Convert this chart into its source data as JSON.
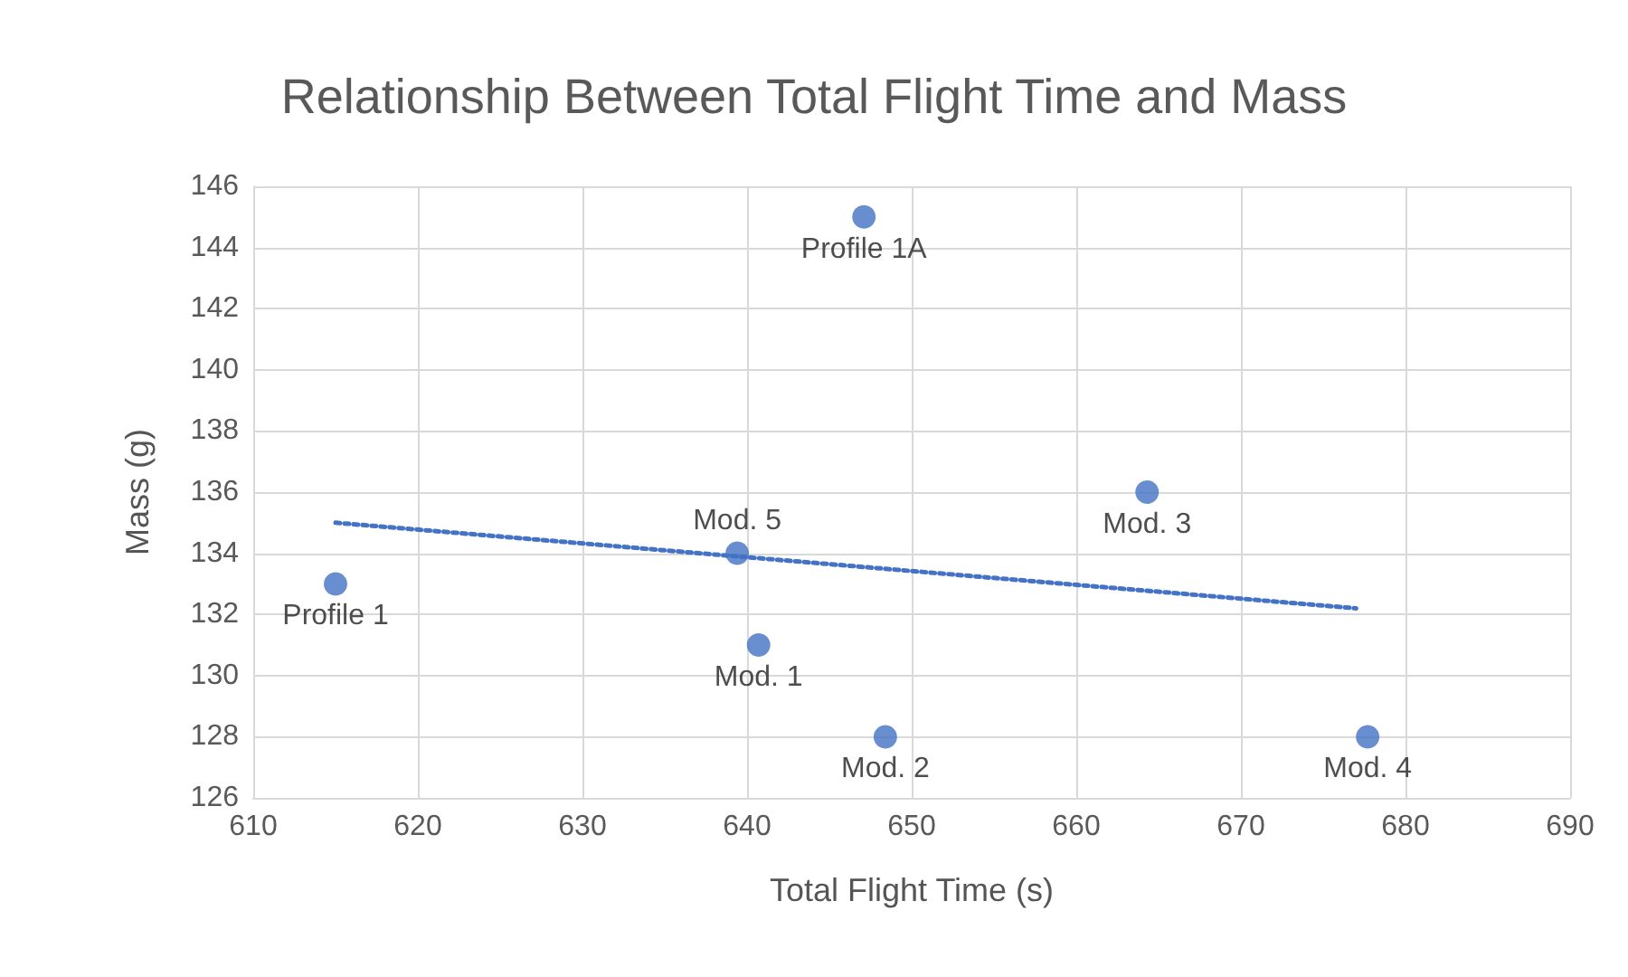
{
  "chart_data": {
    "type": "scatter",
    "title": "Relationship Between Total Flight Time and Mass",
    "xlabel": "Total Flight Time (s)",
    "ylabel": "Mass (g)",
    "xlim": [
      610,
      690
    ],
    "xticks": [
      610,
      620,
      630,
      640,
      650,
      660,
      670,
      680,
      690
    ],
    "ylim": [
      126,
      146
    ],
    "yticks": [
      126,
      128,
      130,
      132,
      134,
      136,
      138,
      140,
      142,
      144,
      146
    ],
    "grid": true,
    "marker": "circle",
    "series": [
      {
        "color": "#4472c4",
        "x": [
          615,
          647.1,
          639.4,
          640.7,
          648.4,
          664.3,
          677.7
        ],
        "values": [
          133,
          145,
          134,
          131,
          128,
          136,
          128
        ]
      },
      {
        "type": "line",
        "color": "#4472c4",
        "line_style": "dotted",
        "marker": "none",
        "x": [
          615,
          677
        ],
        "values": [
          135.0,
          132.2
        ]
      }
    ],
    "annotations": [
      {
        "text": "Profile 1",
        "x": 615,
        "y": 133
      },
      {
        "text": "Profile 1A",
        "x": 647.1,
        "y": 145
      },
      {
        "text": "Mod. 5",
        "x": 639.4,
        "y": 134
      },
      {
        "text": "Mod. 1",
        "x": 640.7,
        "y": 131
      },
      {
        "text": "Mod. 2",
        "x": 648.4,
        "y": 128
      },
      {
        "text": "Mod. 3",
        "x": 664.3,
        "y": 136
      },
      {
        "text": "Mod. 4",
        "x": 677.7,
        "y": 128
      }
    ]
  }
}
